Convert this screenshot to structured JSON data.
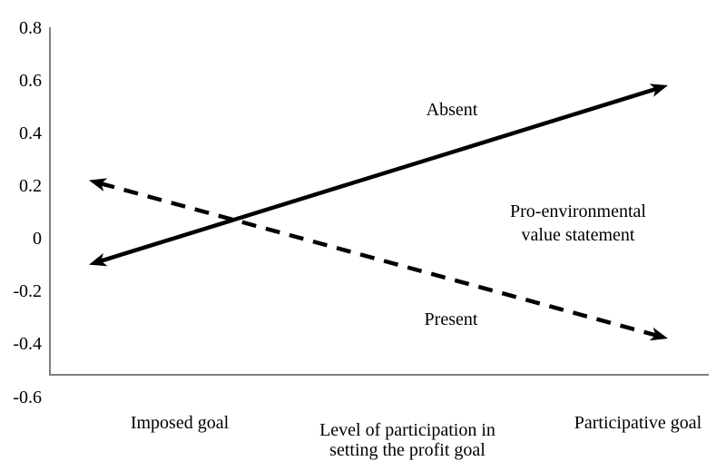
{
  "figure": {
    "background": "#ffffff",
    "axis_color": "#7f7f7f",
    "line_color": "#000000",
    "text_color": "#000000"
  },
  "chart_data": {
    "type": "line",
    "title": "",
    "categories": [
      "Imposed goal",
      "Participative goal"
    ],
    "series": [
      {
        "name": "Absent",
        "style": "solid",
        "arrows": "both-ends",
        "values": [
          -0.1,
          0.58
        ]
      },
      {
        "name": "Present",
        "style": "dashed",
        "arrows": "both-ends",
        "values": [
          0.22,
          -0.38
        ]
      }
    ],
    "xlabel": "Level of participation in setting the profit goal",
    "xlabel_lines": [
      "Level of participation in",
      "setting the profit goal"
    ],
    "ylabel": "",
    "ylim": [
      -0.6,
      0.8
    ],
    "ytick_step": 0.2,
    "ytick_labels": [
      "0.8",
      "0.6",
      "0.4",
      "0.2",
      "0",
      "-0.2",
      "-0.4",
      "-0.6"
    ],
    "grid": false,
    "legend_position": "none",
    "annotation": {
      "line1": "Pro-environmental",
      "line2": "value statement"
    }
  }
}
